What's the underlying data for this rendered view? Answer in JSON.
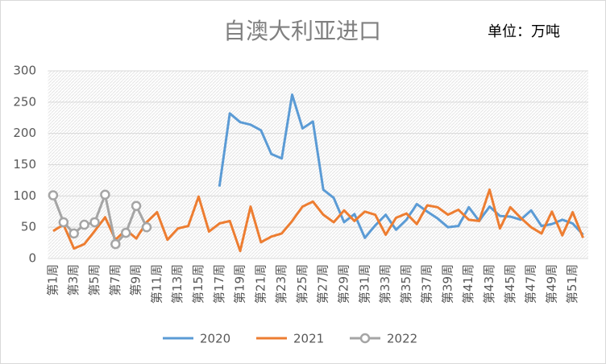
{
  "chart_data": {
    "type": "line",
    "title": "自澳大利亚进口",
    "subtitle": "单位：万吨",
    "categories": [
      "第1周",
      null,
      "第3周",
      null,
      "第5周",
      null,
      "第7周",
      null,
      "第9周",
      null,
      "第11周",
      null,
      "第13周",
      null,
      "第15周",
      null,
      "第17周",
      null,
      "第19周",
      null,
      "第21周",
      null,
      "第23周",
      null,
      "第25周",
      null,
      "第27周",
      null,
      "第29周",
      null,
      "第31周",
      null,
      "第33周",
      null,
      "第35周",
      null,
      "第37周",
      null,
      "第39周",
      null,
      "第41周",
      null,
      "第43周",
      null,
      "第45周",
      null,
      "第47周",
      null,
      "第49周",
      null,
      "第51周",
      null
    ],
    "series": [
      {
        "name": "2020",
        "color": "#5b9bd5",
        "marker": false,
        "values": [
          null,
          null,
          null,
          null,
          null,
          null,
          null,
          null,
          null,
          null,
          null,
          null,
          null,
          null,
          null,
          null,
          115,
          232,
          218,
          214,
          205,
          167,
          160,
          262,
          208,
          219,
          110,
          97,
          58,
          71,
          33,
          53,
          70,
          46,
          62,
          87,
          75,
          64,
          50,
          52,
          82,
          60,
          83,
          68,
          67,
          62,
          77,
          52,
          55,
          62,
          56,
          38
        ]
      },
      {
        "name": "2021",
        "color": "#ed7d31",
        "marker": false,
        "values": [
          44,
          54,
          16,
          23,
          44,
          66,
          30,
          46,
          32,
          58,
          74,
          30,
          48,
          52,
          99,
          43,
          56,
          60,
          12,
          83,
          26,
          35,
          40,
          60,
          83,
          91,
          70,
          58,
          77,
          60,
          75,
          70,
          38,
          65,
          72,
          55,
          85,
          82,
          70,
          78,
          62,
          60,
          110,
          48,
          82,
          65,
          50,
          40,
          75,
          37,
          74,
          33
        ]
      },
      {
        "name": "2022",
        "color": "#a5a5a5",
        "marker": true,
        "values": [
          101,
          58,
          40,
          54,
          58,
          102,
          23,
          41,
          84,
          50,
          null,
          null,
          null,
          null,
          null,
          null,
          null,
          null,
          null,
          null,
          null,
          null,
          null,
          null,
          null,
          null,
          null,
          null,
          null,
          null,
          null,
          null,
          null,
          null,
          null,
          null,
          null,
          null,
          null,
          null,
          null,
          null,
          null,
          null,
          null,
          null,
          null,
          null,
          null,
          null,
          null,
          null
        ]
      }
    ],
    "ylim": [
      0,
      300
    ],
    "yticks": [
      0,
      50,
      100,
      150,
      200,
      250,
      300
    ],
    "grid": true,
    "legend": "bottom"
  }
}
